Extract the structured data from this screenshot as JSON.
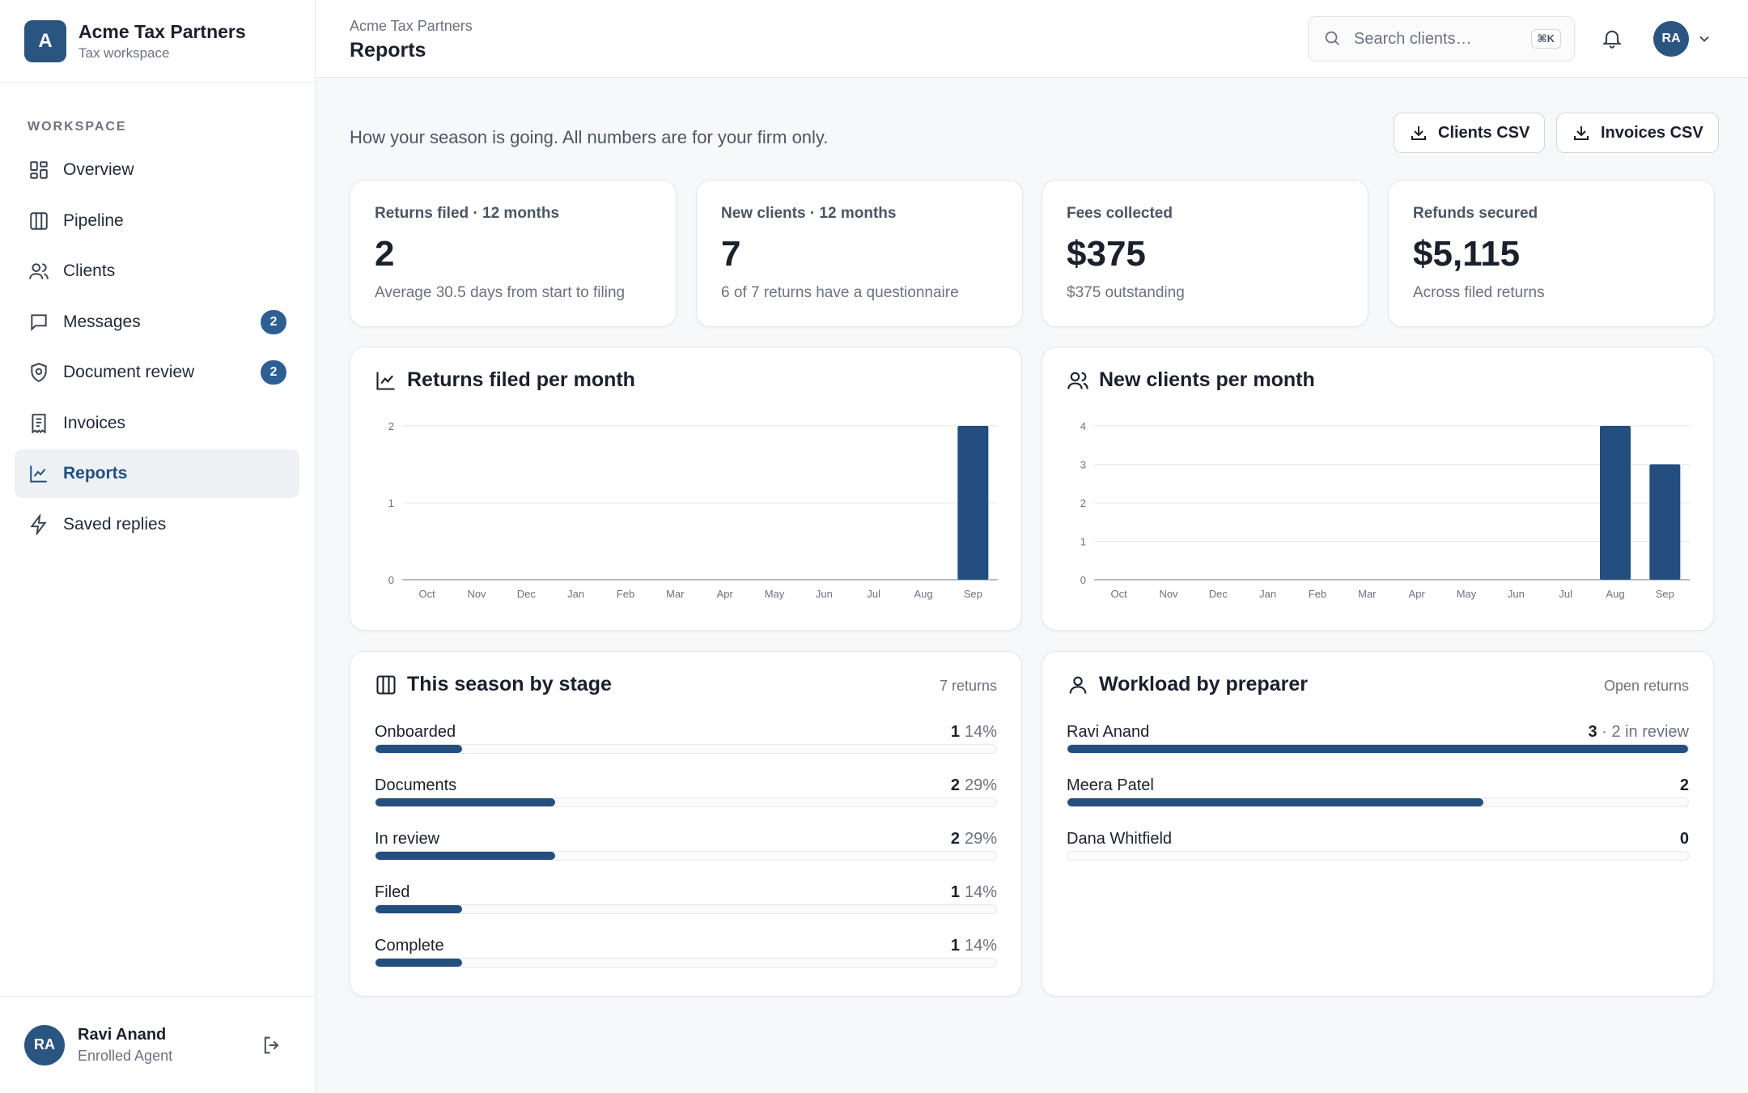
{
  "brand": {
    "logo_letter": "A",
    "name": "Acme Tax Partners",
    "subtitle": "Tax workspace"
  },
  "sidebar": {
    "section_label": "WORKSPACE",
    "items": [
      {
        "label": "Overview",
        "icon": "grid-icon"
      },
      {
        "label": "Pipeline",
        "icon": "columns-icon"
      },
      {
        "label": "Clients",
        "icon": "users-icon"
      },
      {
        "label": "Messages",
        "icon": "chat-icon",
        "badge": "2"
      },
      {
        "label": "Document review",
        "icon": "shield-icon",
        "badge": "2"
      },
      {
        "label": "Invoices",
        "icon": "receipt-icon"
      },
      {
        "label": "Reports",
        "icon": "chart-line-icon",
        "active": true
      },
      {
        "label": "Saved replies",
        "icon": "bolt-icon"
      }
    ]
  },
  "user": {
    "initials": "RA",
    "name": "Ravi Anand",
    "role": "Enrolled Agent"
  },
  "header": {
    "breadcrumb": "Acme Tax Partners",
    "title": "Reports",
    "search_placeholder": "Search clients…",
    "search_shortcut": "⌘K",
    "avatar_initials": "RA"
  },
  "main": {
    "intro": "How your season is going. All numbers are for your firm only.",
    "buttons": {
      "clients_csv": "Clients CSV",
      "invoices_csv": "Invoices CSV"
    },
    "stats": [
      {
        "label": "Returns filed · 12 months",
        "value": "2",
        "sub": "Average 30.5 days from start to filing"
      },
      {
        "label": "New clients · 12 months",
        "value": "7",
        "sub": "6 of 7 returns have a questionnaire"
      },
      {
        "label": "Fees collected",
        "value": "$375",
        "sub": "$375 outstanding"
      },
      {
        "label": "Refunds secured",
        "value": "$5,115",
        "sub": "Across filed returns"
      }
    ],
    "stage": {
      "title": "This season by stage",
      "meta": "7 returns",
      "rows": [
        {
          "label": "Onboarded",
          "count": "1",
          "pct": "14%",
          "fraction": 0.14
        },
        {
          "label": "Documents",
          "count": "2",
          "pct": "29%",
          "fraction": 0.29
        },
        {
          "label": "In review",
          "count": "2",
          "pct": "29%",
          "fraction": 0.29
        },
        {
          "label": "Filed",
          "count": "1",
          "pct": "14%",
          "fraction": 0.14
        },
        {
          "label": "Complete",
          "count": "1",
          "pct": "14%",
          "fraction": 0.14
        }
      ]
    },
    "workload": {
      "title": "Workload by preparer",
      "meta": "Open returns",
      "rows": [
        {
          "label": "Ravi Anand",
          "count": "3",
          "extra": " · 2 in review",
          "fraction": 1.0
        },
        {
          "label": "Meera Patel",
          "count": "2",
          "extra": "",
          "fraction": 0.67
        },
        {
          "label": "Dana Whitfield",
          "count": "0",
          "extra": "",
          "fraction": 0.0
        }
      ]
    }
  },
  "chart_data": [
    {
      "type": "bar",
      "title": "Returns filed per month",
      "categories": [
        "Oct",
        "Nov",
        "Dec",
        "Jan",
        "Feb",
        "Mar",
        "Apr",
        "May",
        "Jun",
        "Jul",
        "Aug",
        "Sep"
      ],
      "values": [
        0,
        0,
        0,
        0,
        0,
        0,
        0,
        0,
        0,
        0,
        0,
        2
      ],
      "yticks": [
        0,
        1,
        2
      ],
      "ylim": [
        0,
        2
      ],
      "grid": true,
      "color": "#234e7e"
    },
    {
      "type": "bar",
      "title": "New clients per month",
      "categories": [
        "Oct",
        "Nov",
        "Dec",
        "Jan",
        "Feb",
        "Mar",
        "Apr",
        "May",
        "Jun",
        "Jul",
        "Aug",
        "Sep"
      ],
      "values": [
        0,
        0,
        0,
        0,
        0,
        0,
        0,
        0,
        0,
        0,
        4,
        3
      ],
      "yticks": [
        0,
        1,
        2,
        3,
        4
      ],
      "ylim": [
        0,
        4
      ],
      "grid": true,
      "color": "#234e7e"
    }
  ]
}
